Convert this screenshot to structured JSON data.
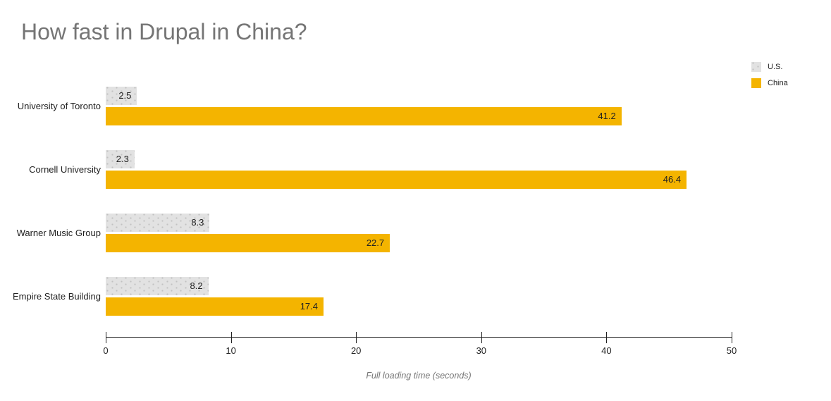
{
  "title": "How fast in Drupal in China?",
  "colors": {
    "us_series": "#e2e2e2",
    "china_series": "#f4b400",
    "title_text": "#757575",
    "axis_text": "#212121"
  },
  "chart_data": {
    "type": "bar",
    "orientation": "horizontal",
    "title": "How fast in Drupal in China?",
    "categories": [
      "University of Toronto",
      "Cornell University",
      "Warner Music Group",
      "Empire State Building"
    ],
    "series": [
      {
        "name": "U.S.",
        "color": "#e2e2e2",
        "pattern": "dots",
        "values": [
          2.5,
          2.3,
          8.3,
          8.2
        ]
      },
      {
        "name": "China",
        "color": "#f4b400",
        "pattern": "solid",
        "values": [
          41.2,
          46.4,
          22.7,
          17.4
        ]
      }
    ],
    "xlabel": "Full loading time (seconds)",
    "xlim": [
      0,
      50
    ],
    "xticks": [
      0,
      10,
      20,
      30,
      40,
      50
    ],
    "legend_position": "top-right",
    "grid": false,
    "bar_value_labels": "inside-right"
  }
}
